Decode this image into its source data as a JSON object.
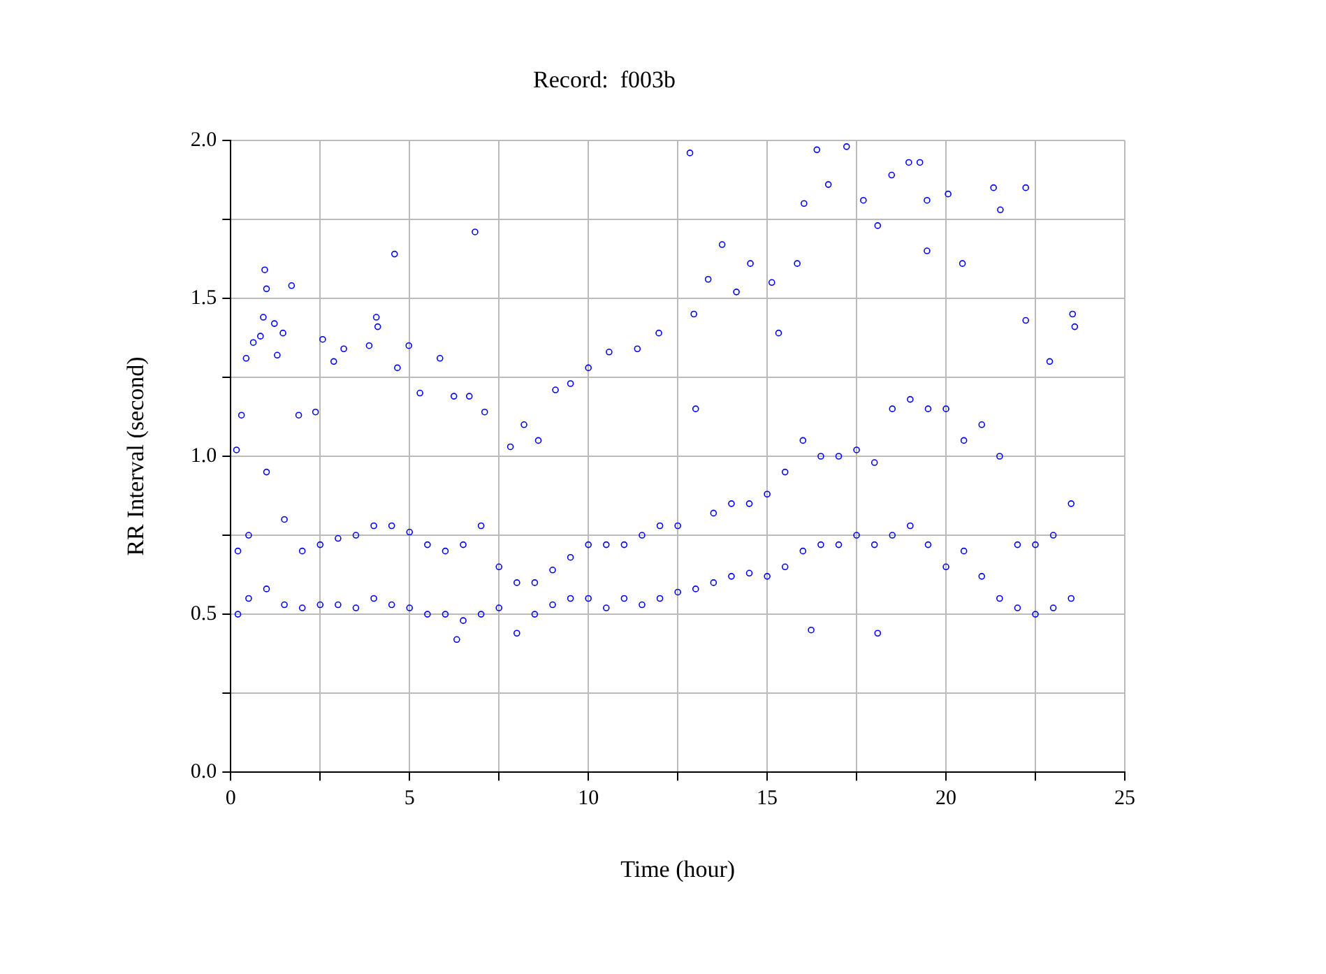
{
  "chart_data": {
    "type": "scatter",
    "title": "Record:  f003b",
    "xlabel": "Time (hour)",
    "ylabel": "RR Interval (second)",
    "color": "#0000ff",
    "marker": "circle",
    "grid": true,
    "xlim": [
      0,
      25
    ],
    "ylim": [
      0,
      2
    ],
    "xticks": [
      0,
      {
        "value": 2.5,
        "label": null
      },
      5,
      {
        "value": 7.5,
        "label": null
      },
      10,
      {
        "value": 12.5,
        "label": null
      },
      15,
      {
        "value": 17.5,
        "label": null
      },
      20,
      {
        "value": 22.5,
        "label": null
      },
      25
    ],
    "yticks": [
      {
        "value": 0,
        "label": "0.0"
      },
      {
        "value": 0.25,
        "label": null
      },
      {
        "value": 0.5,
        "label": "0.5"
      },
      {
        "value": 0.75,
        "label": null
      },
      {
        "value": 1,
        "label": "1.0"
      },
      {
        "value": 1.25,
        "label": null
      },
      {
        "value": 1.5,
        "label": "1.5"
      },
      {
        "value": 1.75,
        "label": null
      },
      {
        "value": 2,
        "label": "2.0"
      }
    ],
    "x": [
      0.2,
      0.2,
      0.5,
      0.5,
      1.0,
      1.0,
      1.5,
      1.5,
      2.0,
      2.0,
      2.5,
      2.5,
      3.0,
      3.0,
      3.5,
      3.5,
      4.0,
      4.0,
      4.5,
      4.5,
      5.0,
      5.0,
      5.5,
      5.5,
      6.0,
      6.0,
      6.5,
      6.5,
      7.0,
      7.0,
      7.5,
      7.5,
      8.0,
      8.0,
      8.5,
      8.5,
      9.0,
      9.0,
      9.5,
      9.5,
      10.0,
      10.0,
      10.5,
      10.5,
      11.0,
      11.0,
      11.5,
      11.5,
      12.0,
      12.0,
      12.5,
      12.5,
      13.0,
      13.0,
      13.5,
      13.5,
      14.0,
      14.0,
      14.5,
      14.5,
      15.0,
      15.0,
      15.5,
      15.5,
      16.0,
      16.0,
      16.5,
      16.5,
      17.0,
      17.0,
      17.5,
      17.5,
      18.0,
      18.0,
      18.5,
      18.5,
      19.0,
      19.0,
      19.5,
      19.5,
      20.0,
      20.0,
      20.5,
      20.5,
      21.0,
      21.0,
      21.5,
      21.5,
      22.0,
      22.0,
      22.5,
      22.5,
      23.0,
      23.0,
      23.5,
      23.5,
      0.16,
      0.3,
      0.43,
      0.63,
      0.83,
      0.91,
      1.0,
      0.95,
      1.22,
      1.3,
      1.46,
      1.7,
      1.9,
      2.37,
      2.57,
      2.88,
      3.16,
      3.87,
      4.07,
      4.11,
      4.58,
      4.66,
      4.98,
      5.29,
      5.85,
      6.24,
      6.67,
      6.83,
      7.1,
      7.82,
      8.2,
      8.6,
      9.08,
      9.5,
      10.0,
      10.58,
      11.37,
      11.97,
      12.84,
      12.95,
      13.35,
      13.74,
      14.14,
      14.53,
      15.13,
      15.32,
      15.84,
      16.03,
      16.39,
      16.71,
      17.22,
      17.69,
      18.09,
      18.48,
      18.96,
      19.27,
      19.47,
      20.06,
      19.47,
      20.46,
      21.33,
      21.52,
      22.23,
      22.23,
      22.9,
      23.54,
      23.6,
      18.09,
      16.23,
      6.32
    ],
    "values": [
      0.5,
      0.7,
      0.55,
      0.75,
      0.58,
      0.95,
      0.53,
      0.8,
      0.52,
      0.7,
      0.53,
      0.72,
      0.53,
      0.74,
      0.52,
      0.75,
      0.55,
      0.78,
      0.53,
      0.78,
      0.52,
      0.76,
      0.5,
      0.72,
      0.5,
      0.7,
      0.48,
      0.72,
      0.5,
      0.78,
      0.52,
      0.65,
      0.44,
      0.6,
      0.5,
      0.6,
      0.53,
      0.64,
      0.55,
      0.68,
      0.55,
      0.72,
      0.52,
      0.72,
      0.55,
      0.72,
      0.53,
      0.75,
      0.55,
      0.78,
      0.57,
      0.78,
      0.58,
      1.15,
      0.6,
      0.82,
      0.62,
      0.85,
      0.63,
      0.85,
      0.62,
      0.88,
      0.65,
      0.95,
      0.7,
      1.05,
      0.72,
      1.0,
      0.72,
      1.0,
      0.75,
      1.02,
      0.72,
      0.98,
      0.75,
      1.15,
      0.78,
      1.18,
      0.72,
      1.15,
      0.65,
      1.15,
      0.7,
      1.05,
      0.62,
      1.1,
      0.55,
      1.0,
      0.52,
      0.72,
      0.5,
      0.72,
      0.52,
      0.75,
      0.55,
      0.85,
      1.02,
      1.13,
      1.31,
      1.36,
      1.38,
      1.44,
      1.53,
      1.59,
      1.42,
      1.32,
      1.39,
      1.54,
      1.13,
      1.14,
      1.37,
      1.3,
      1.34,
      1.35,
      1.44,
      1.41,
      1.64,
      1.28,
      1.35,
      1.2,
      1.31,
      1.19,
      1.19,
      1.71,
      1.14,
      1.03,
      1.1,
      1.05,
      1.21,
      1.23,
      1.28,
      1.33,
      1.34,
      1.39,
      1.96,
      1.45,
      1.56,
      1.67,
      1.52,
      1.61,
      1.55,
      1.39,
      1.61,
      1.8,
      1.97,
      1.86,
      1.98,
      1.81,
      1.73,
      1.89,
      1.93,
      1.93,
      1.81,
      1.83,
      1.65,
      1.61,
      1.85,
      1.78,
      1.85,
      1.43,
      1.3,
      1.45,
      1.41,
      0.44,
      0.45,
      0.42
    ]
  }
}
